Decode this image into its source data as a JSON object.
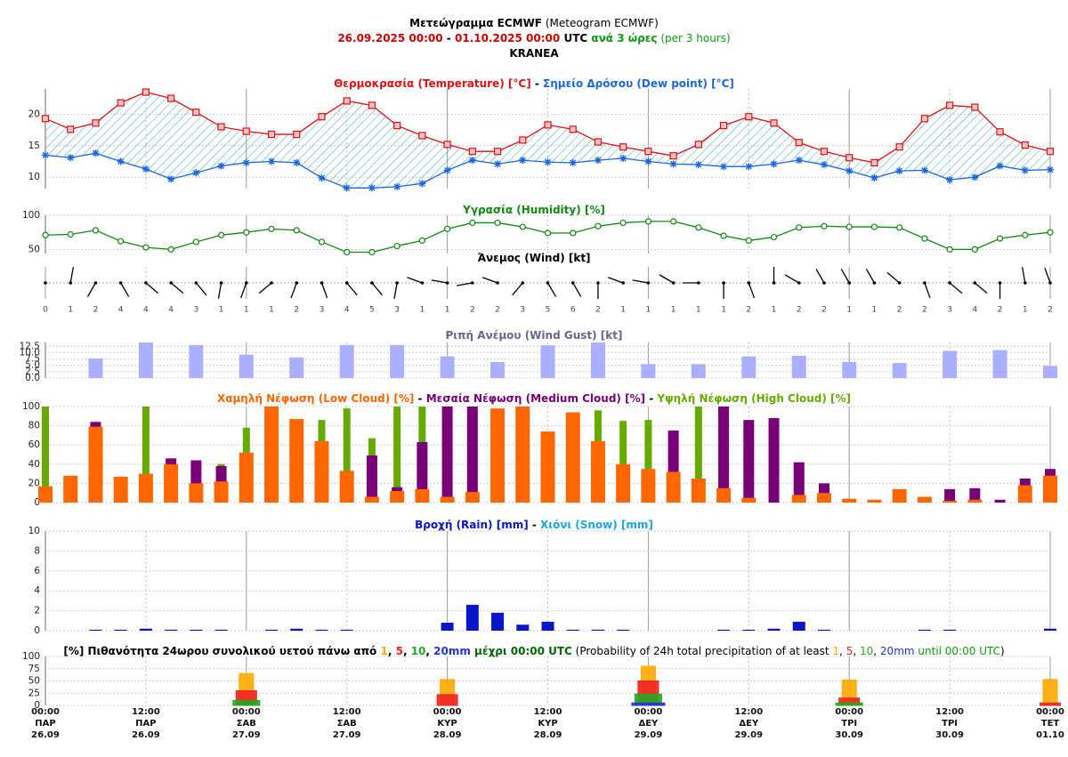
{
  "header": {
    "lines": [
      [
        {
          "text": "Μετεώγραμμα ECMWF",
          "color": "#000000",
          "bold": true
        },
        {
          "text": " (Meteogram ECMWF)",
          "color": "#000000",
          "bold": false
        }
      ],
      [
        {
          "text": "26.09.2025 00:00",
          "color": "#cc0000",
          "bold": true
        },
        {
          "text": " - ",
          "color": "#000000",
          "bold": true
        },
        {
          "text": "01.10.2025 00:00",
          "color": "#cc0000",
          "bold": true
        },
        {
          "text": " UTC",
          "color": "#000000",
          "bold": true
        },
        {
          "text": " ανά 3 ώρες",
          "color": "#119911",
          "bold": true
        },
        {
          "text": " (per 3 hours)",
          "color": "#119911",
          "bold": false
        }
      ],
      [
        {
          "text": "KRANEA",
          "color": "#000000",
          "bold": true
        }
      ]
    ]
  },
  "chart_data": [
    {
      "type": "line",
      "separator": " - ",
      "separator_color": "#000000",
      "fill_between": true,
      "xlim": [
        0,
        120
      ],
      "ylim": [
        8.2,
        24
      ],
      "yticks": [
        10,
        15,
        20
      ],
      "grid": true,
      "x": [
        0,
        3,
        6,
        9,
        12,
        15,
        18,
        21,
        24,
        27,
        30,
        33,
        36,
        39,
        42,
        45,
        48,
        51,
        54,
        57,
        60,
        63,
        66,
        69,
        72,
        75,
        78,
        81,
        84,
        87,
        90,
        93,
        96,
        99,
        102,
        105,
        108,
        111,
        114,
        117,
        120
      ],
      "series": [
        {
          "name": "Θερμοκρασία (Temperature) [°C]",
          "color": "#dd1111",
          "marker": "square",
          "values": [
            19.3,
            17.6,
            18.6,
            21.8,
            23.5,
            22.5,
            20.3,
            18.0,
            17.3,
            16.8,
            16.8,
            19.6,
            22.1,
            21.4,
            18.2,
            16.6,
            15.2,
            14.1,
            14.1,
            15.9,
            18.3,
            17.6,
            15.6,
            14.8,
            14.1,
            13.4,
            15.2,
            18.2,
            19.6,
            18.6,
            15.5,
            14.1,
            13.1,
            12.3,
            14.8,
            19.3,
            21.4,
            21.1,
            17.2,
            15.1,
            14.1
          ]
        },
        {
          "name": "Σημείο Δρόσου (Dew point) [°C]",
          "color": "#1a66dd",
          "marker": "star",
          "values": [
            13.5,
            13.1,
            13.8,
            12.5,
            11.3,
            9.7,
            10.7,
            11.8,
            12.3,
            12.5,
            12.3,
            9.9,
            8.3,
            8.3,
            8.5,
            9.0,
            11.1,
            12.7,
            12.1,
            12.7,
            12.4,
            12.3,
            12.7,
            13.0,
            12.5,
            12.1,
            12.0,
            11.7,
            11.7,
            12.1,
            12.7,
            12.0,
            11.0,
            9.9,
            11.0,
            11.1,
            9.6,
            10.0,
            11.8,
            11.1,
            11.2
          ]
        }
      ]
    },
    {
      "type": "line",
      "xlim": [
        0,
        120
      ],
      "ylim": [
        44,
        100
      ],
      "yticks": [
        50,
        100
      ],
      "grid": true,
      "x": [
        0,
        3,
        6,
        9,
        12,
        15,
        18,
        21,
        24,
        27,
        30,
        33,
        36,
        39,
        42,
        45,
        48,
        51,
        54,
        57,
        60,
        63,
        66,
        69,
        72,
        75,
        78,
        81,
        84,
        87,
        90,
        93,
        96,
        99,
        102,
        105,
        108,
        111,
        114,
        117,
        120
      ],
      "series": [
        {
          "name": "Υγρασία (Humidity) [%]",
          "color": "#118811",
          "marker": "circle",
          "values": [
            71,
            72,
            78,
            62,
            53,
            50,
            61,
            71,
            75,
            80,
            78,
            61,
            46,
            46,
            55,
            63,
            80,
            89,
            89,
            83,
            74,
            74,
            84,
            89,
            91,
            91,
            82,
            70,
            63,
            68,
            82,
            84,
            83,
            83,
            82,
            66,
            50,
            50,
            66,
            71,
            75
          ]
        }
      ]
    },
    {
      "type": "wind",
      "title": "Άνεμος (Wind) [kt]",
      "title_color": "#000000",
      "color": "#000000",
      "xlim": [
        0,
        120
      ],
      "x": [
        0,
        3,
        6,
        9,
        12,
        15,
        18,
        21,
        24,
        27,
        30,
        33,
        36,
        39,
        42,
        45,
        48,
        51,
        54,
        57,
        60,
        63,
        66,
        69,
        72,
        75,
        78,
        81,
        84,
        87,
        90,
        93,
        96,
        99,
        102,
        105,
        108,
        111,
        114,
        117,
        120
      ],
      "values": [
        0,
        1,
        2,
        4,
        4,
        4,
        3,
        1,
        1,
        1,
        2,
        3,
        4,
        5,
        3,
        1,
        1,
        2,
        2,
        3,
        5,
        6,
        2,
        1,
        1,
        1,
        1,
        1,
        2,
        1,
        2,
        2,
        1,
        1,
        2,
        2,
        3,
        4,
        2,
        1,
        2
      ],
      "directions": [
        null,
        10,
        210,
        150,
        130,
        130,
        140,
        190,
        200,
        230,
        200,
        160,
        140,
        140,
        190,
        290,
        280,
        260,
        290,
        220,
        150,
        150,
        180,
        290,
        280,
        300,
        270,
        180,
        160,
        0,
        300,
        330,
        330,
        330,
        310,
        160,
        130,
        130,
        180,
        350,
        340
      ]
    },
    {
      "type": "bar",
      "title": "Ριπή Ανέμου (Wind Gust) [kt]",
      "title_color": "#66668a",
      "color": "#aab0ff",
      "xlim": [
        0,
        120
      ],
      "ylim": [
        0,
        14
      ],
      "yticks": [
        {
          "value": 0,
          "label": "0.0"
        },
        2.5,
        {
          "value": 5,
          "label": "5.0"
        },
        7.5,
        {
          "value": 10,
          "label": "10.0"
        },
        12.5
      ],
      "grid": true,
      "x": [
        6,
        12,
        18,
        24,
        30,
        36,
        42,
        48,
        54,
        60,
        66,
        72,
        78,
        84,
        90,
        96,
        102,
        108,
        114,
        120
      ],
      "values": [
        7.7,
        14,
        13,
        9.2,
        8.1,
        13,
        13,
        8.5,
        6.3,
        12.9,
        14,
        5.5,
        5.5,
        8.5,
        8.8,
        6.3,
        5.9,
        10.7,
        11,
        4.8
      ]
    },
    {
      "type": "bar",
      "separator": " - ",
      "separator_color": "#000000",
      "xlim": [
        0,
        120
      ],
      "ylim": [
        0,
        100
      ],
      "yticks": [
        0,
        20,
        40,
        60,
        80,
        100
      ],
      "grid": true,
      "x": [
        0,
        3,
        6,
        9,
        12,
        15,
        18,
        21,
        24,
        27,
        30,
        33,
        36,
        39,
        42,
        45,
        48,
        51,
        54,
        57,
        60,
        63,
        66,
        69,
        72,
        75,
        78,
        81,
        84,
        87,
        90,
        93,
        96,
        99,
        102,
        105,
        108,
        111,
        114,
        117,
        120
      ],
      "series": [
        {
          "name": "Χαμηλή Νέφωση (Low Cloud) [%]",
          "color": "#ff6600",
          "values": [
            17,
            28,
            79,
            27,
            30,
            40,
            20,
            22,
            52,
            100,
            87,
            64,
            33,
            6,
            12,
            14,
            6,
            11,
            98,
            100,
            74,
            94,
            64,
            40,
            35,
            32,
            25,
            15,
            5,
            0,
            8,
            10,
            4,
            3,
            14,
            6,
            2,
            3,
            0,
            18,
            28
          ]
        },
        {
          "name": "Μεσαία Νέφωση (Medium Cloud) [%]",
          "color": "#770077",
          "values": [
            0,
            0,
            84,
            0,
            0,
            46,
            44,
            38,
            0,
            0,
            0,
            0,
            0,
            49,
            16,
            63,
            100,
            100,
            0,
            0,
            0,
            0,
            0,
            0,
            0,
            75,
            0,
            100,
            86,
            88,
            42,
            20,
            0,
            0,
            0,
            0,
            14,
            15,
            3,
            25,
            35
          ]
        },
        {
          "name": "Υψηλή Νέφωση (High Cloud) [%]",
          "color": "#66aa00",
          "values": [
            100,
            0,
            0,
            0,
            100,
            0,
            0,
            40,
            78,
            0,
            0,
            86,
            98,
            67,
            100,
            100,
            0,
            0,
            0,
            0,
            0,
            0,
            96,
            85,
            86,
            0,
            100,
            0,
            0,
            0,
            0,
            0,
            0,
            0,
            0,
            0,
            0,
            0,
            0,
            0,
            0
          ]
        }
      ]
    },
    {
      "type": "bar",
      "separator": " - ",
      "separator_color": "#000000",
      "xlim": [
        0,
        120
      ],
      "ylim": [
        0,
        10
      ],
      "yticks": [
        0,
        2,
        4,
        6,
        8,
        10
      ],
      "grid": true,
      "x": [
        0,
        3,
        6,
        9,
        12,
        15,
        18,
        21,
        24,
        27,
        30,
        33,
        36,
        39,
        42,
        45,
        48,
        51,
        54,
        57,
        60,
        63,
        66,
        69,
        72,
        75,
        78,
        81,
        84,
        87,
        90,
        93,
        96,
        99,
        102,
        105,
        108,
        111,
        114,
        117,
        120
      ],
      "series": [
        {
          "name": "Βροχή (Rain) [mm]",
          "color": "#0a14c8",
          "values": [
            0,
            0,
            0.1,
            0.1,
            0.2,
            0.1,
            0.1,
            0.1,
            0,
            0.1,
            0.2,
            0.1,
            0.1,
            0,
            0,
            0,
            0.8,
            2.6,
            1.8,
            0.6,
            0.9,
            0.1,
            0.1,
            0.1,
            0,
            0,
            0,
            0.1,
            0.1,
            0.2,
            0.9,
            0.1,
            0,
            0,
            0,
            0.1,
            0.1,
            0,
            0,
            0,
            0.2
          ]
        },
        {
          "name": "Χιόνι (Snow) [mm]",
          "color": "#1aa5e0",
          "values": [
            0,
            0,
            0,
            0,
            0,
            0,
            0,
            0,
            0,
            0,
            0,
            0,
            0,
            0,
            0,
            0,
            0,
            0,
            0,
            0,
            0,
            0,
            0,
            0,
            0,
            0,
            0,
            0,
            0,
            0,
            0,
            0,
            0,
            0,
            0,
            0,
            0,
            0,
            0,
            0,
            0
          ]
        }
      ]
    },
    {
      "type": "probability",
      "title": "[%] Πιθανότητα 24ωρου συνολικού υετού πάνω από ",
      "title_color": "#000000",
      "separator": ", ",
      "title_suffix": " μέχρι 00:00 UTC",
      "title_suffix_color": "#006600",
      "subtitle": " (Probability of 24h total precipitation of at least ",
      "subtitle_suffix": " until 00:00 UTC",
      "subtitle_suffix_color": "#119911",
      "subtitle_end": ")",
      "xlim": [
        0,
        120
      ],
      "ylim": [
        0,
        100
      ],
      "yticks": [
        0,
        25,
        50,
        75,
        100
      ],
      "grid": true,
      "xticks": [
        {
          "value": 0,
          "label": "00:00\nΠΑΡ\n26.09"
        },
        {
          "value": 12,
          "label": "12:00\nΠΑΡ\n26.09"
        },
        {
          "value": 24,
          "label": "00:00\nΣΑΒ\n27.09"
        },
        {
          "value": 36,
          "label": "12:00\nΣΑΒ\n27.09"
        },
        {
          "value": 48,
          "label": "00:00\nΚΥΡ\n28.09"
        },
        {
          "value": 60,
          "label": "12:00\nΚΥΡ\n28.09"
        },
        {
          "value": 72,
          "label": "00:00\nΔΕΥ\n29.09"
        },
        {
          "value": 84,
          "label": "12:00\nΔΕΥ\n29.09"
        },
        {
          "value": 96,
          "label": "00:00\nΤΡΙ\n30.09"
        },
        {
          "value": 108,
          "label": "12:00\nΤΡΙ\n30.09"
        },
        {
          "value": 120,
          "label": "00:00\nΤΕΤ\n01.10"
        }
      ],
      "x": [
        24,
        48,
        72,
        96,
        120
      ],
      "series": [
        {
          "name": "1",
          "color": "#ffaa00",
          "values": [
            65,
            53,
            80,
            52,
            53
          ]
        },
        {
          "name": "5",
          "color": "#ee2222",
          "values": [
            30,
            22,
            50,
            15,
            5
          ]
        },
        {
          "name": "10",
          "color": "#22aa22",
          "values": [
            10,
            0,
            23,
            5,
            0
          ]
        },
        {
          "name": "20mm",
          "color": "#2233dd",
          "values": [
            0,
            0,
            5,
            0,
            0
          ]
        }
      ]
    }
  ]
}
